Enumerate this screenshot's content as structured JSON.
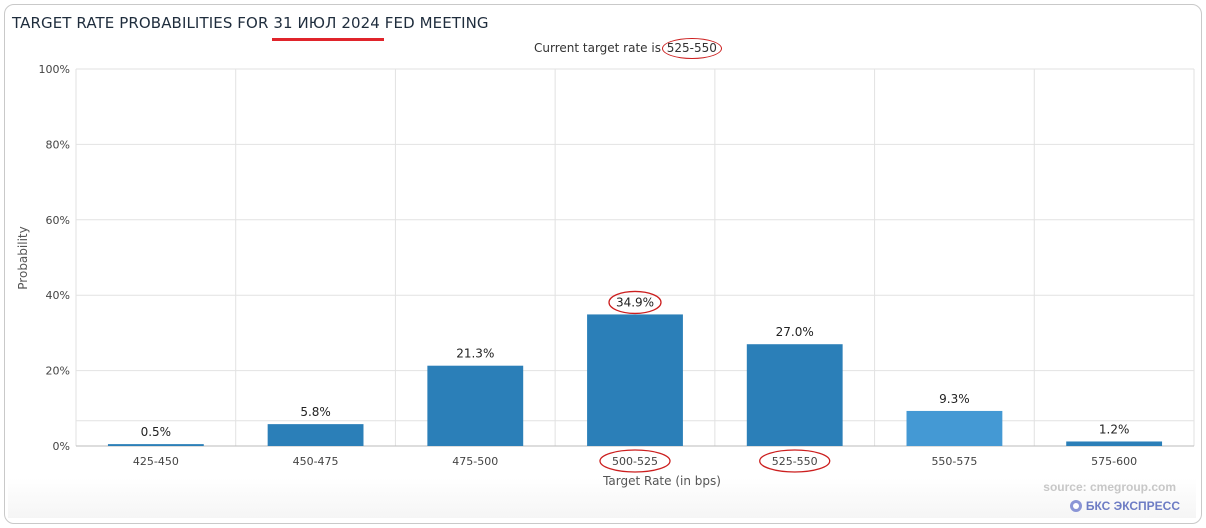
{
  "title": "TARGET RATE PROBABILITIES FOR 31 ИЮЛ 2024 FED MEETING",
  "subtitle_prefix": "Current target rate is ",
  "current_rate": "525-550",
  "source": "source: cmegroup.com",
  "brand": "БКС ЭКСПРЕСС",
  "colors": {
    "bar": "#2b7fb8",
    "bar_highlight": "#4499d4",
    "grid": "#e2e2e2",
    "annotation": "#cc1f1f",
    "title_underline": "#e0242b"
  },
  "chart_data": {
    "type": "bar",
    "title": "TARGET RATE PROBABILITIES FOR 31 ИЮЛ 2024 FED MEETING",
    "subtitle": "Current target rate is 525-550",
    "xlabel": "Target Rate (in bps)",
    "ylabel": "Probability",
    "ylim": [
      0,
      100
    ],
    "yticks": [
      "0%",
      "20%",
      "40%",
      "60%",
      "80%",
      "100%"
    ],
    "categories": [
      "425-450",
      "450-475",
      "475-500",
      "500-525",
      "525-550",
      "550-575",
      "575-600"
    ],
    "values": [
      0.5,
      5.8,
      21.3,
      34.9,
      27.0,
      9.3,
      1.2
    ],
    "value_labels": [
      "0.5%",
      "5.8%",
      "21.3%",
      "34.9%",
      "27.0%",
      "9.3%",
      "1.2%"
    ],
    "highlighted_category": "550-575",
    "circled": [
      "500-525",
      "34.9%",
      "525-550"
    ],
    "grid": true,
    "legend": "none"
  }
}
